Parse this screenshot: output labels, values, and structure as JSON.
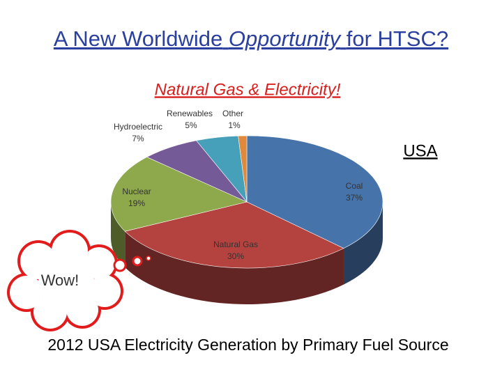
{
  "header": {
    "title_start": "A New Worldwide",
    "title_italic": "Opportunity",
    "title_end": "for  HTSC?",
    "subtitle": "Natural Gas & Electricity!",
    "region": "USA",
    "callout": "Wow!"
  },
  "chart_data": {
    "type": "pie",
    "title": "2012 USA Electricity Generation by Primary Fuel Source",
    "categories": [
      "Coal",
      "Natural Gas",
      "Nuclear",
      "Hydroelectric",
      "Renewables",
      "Other"
    ],
    "values": [
      37,
      30,
      19,
      7,
      5,
      1
    ],
    "value_labels": [
      "37%",
      "30%",
      "19%",
      "7%",
      "5%",
      "1%"
    ],
    "colors": [
      "#4673a9",
      "#b4433f",
      "#8ea84c",
      "#755a98",
      "#46a0b9",
      "#e0893a"
    ]
  }
}
